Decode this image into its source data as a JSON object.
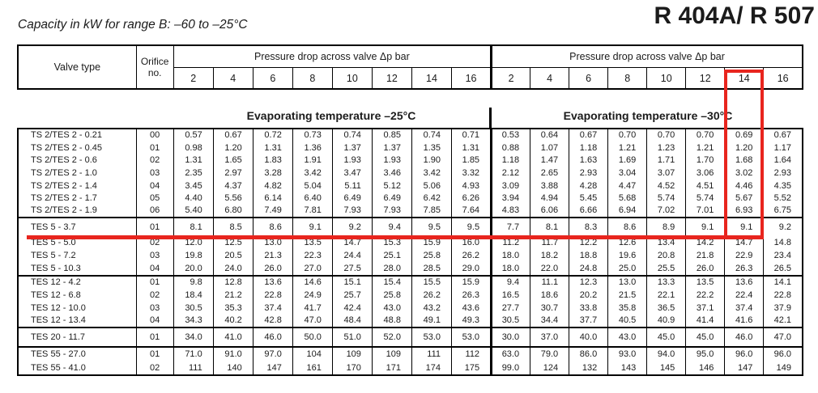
{
  "page": {
    "subtitle": "Capacity in kW for range B: –60 to –25°C",
    "title": "R 404A/ R 507"
  },
  "header": {
    "valve_type": "Valve type",
    "orifice": "Orifice no.",
    "pressure_drop_left": "Pressure drop across valve Δp bar",
    "pressure_drop_right": "Pressure drop across valve Δp bar",
    "pressure_columns": [
      "2",
      "4",
      "6",
      "8",
      "10",
      "12",
      "14",
      "16"
    ]
  },
  "sections": {
    "evap_left": "Evaporating temperature –25°C",
    "evap_right": "Evaporating temperature –30°C"
  },
  "highlight": {
    "color": "#e8251e",
    "marked_column": "14",
    "marked_row": "TES 5 - 3.7"
  },
  "table": {
    "groups": [
      {
        "rows": [
          {
            "valve": "TS 2/TES 2 - 0.21",
            "orifice": "00",
            "minus25": [
              "0.57",
              "0.67",
              "0.72",
              "0.73",
              "0.74",
              "0.85",
              "0.74",
              "0.71"
            ],
            "minus30": [
              "0.53",
              "0.64",
              "0.67",
              "0.70",
              "0.70",
              "0.70",
              "0.69",
              "0.67"
            ]
          },
          {
            "valve": "TS 2/TES 2 - 0.45",
            "orifice": "01",
            "minus25": [
              "0.98",
              "1.20",
              "1.31",
              "1.36",
              "1.37",
              "1.37",
              "1.35",
              "1.31"
            ],
            "minus30": [
              "0.88",
              "1.07",
              "1.18",
              "1.21",
              "1.23",
              "1.21",
              "1.20",
              "1.17"
            ]
          },
          {
            "valve": "TS 2/TES 2 - 0.6",
            "orifice": "02",
            "minus25": [
              "1.31",
              "1.65",
              "1.83",
              "1.91",
              "1.93",
              "1.93",
              "1.90",
              "1.85"
            ],
            "minus30": [
              "1.18",
              "1.47",
              "1.63",
              "1.69",
              "1.71",
              "1.70",
              "1.68",
              "1.64"
            ]
          },
          {
            "valve": "TS 2/TES 2 - 1.0",
            "orifice": "03",
            "minus25": [
              "2.35",
              "2.97",
              "3.28",
              "3.42",
              "3.47",
              "3.46",
              "3.42",
              "3.32"
            ],
            "minus30": [
              "2.12",
              "2.65",
              "2.93",
              "3.04",
              "3.07",
              "3.06",
              "3.02",
              "2.93"
            ]
          },
          {
            "valve": "TS 2/TES 2 - 1.4",
            "orifice": "04",
            "minus25": [
              "3.45",
              "4.37",
              "4.82",
              "5.04",
              "5.11",
              "5.12",
              "5.06",
              "4.93"
            ],
            "minus30": [
              "3.09",
              "3.88",
              "4.28",
              "4.47",
              "4.52",
              "4.51",
              "4.46",
              "4.35"
            ]
          },
          {
            "valve": "TS 2/TES 2 - 1.7",
            "orifice": "05",
            "minus25": [
              "4.40",
              "5.56",
              "6.14",
              "6.40",
              "6.49",
              "6.49",
              "6.42",
              "6.26"
            ],
            "minus30": [
              "3.94",
              "4.94",
              "5.45",
              "5.68",
              "5.74",
              "5.74",
              "5.67",
              "5.52"
            ]
          },
          {
            "valve": "TS 2/TES 2 - 1.9",
            "orifice": "06",
            "minus25": [
              "5.40",
              "6.80",
              "7.49",
              "7.81",
              "7.93",
              "7.93",
              "7.85",
              "7.64"
            ],
            "minus30": [
              "4.83",
              "6.06",
              "6.66",
              "6.94",
              "7.02",
              "7.01",
              "6.93",
              "6.75"
            ]
          }
        ]
      },
      {
        "rows": [
          {
            "valve": "TES 5 - 3.7",
            "orifice": "01",
            "minus25": [
              "8.1",
              "8.5",
              "8.6",
              "9.1",
              "9.2",
              "9.4",
              "9.5",
              "9.5"
            ],
            "minus30": [
              "7.7",
              "8.1",
              "8.3",
              "8.6",
              "8.9",
              "9.1",
              "9.1",
              "9.2"
            ]
          },
          {
            "valve": "TES 5 - 5.0",
            "orifice": "02",
            "minus25": [
              "12.0",
              "12.5",
              "13.0",
              "13.5",
              "14.7",
              "15.3",
              "15.9",
              "16.0"
            ],
            "minus30": [
              "11.2",
              "11.7",
              "12.2",
              "12.6",
              "13.4",
              "14.2",
              "14.7",
              "14.8"
            ]
          },
          {
            "valve": "TES 5 - 7.2",
            "orifice": "03",
            "minus25": [
              "19.8",
              "20.5",
              "21.3",
              "22.3",
              "24.4",
              "25.1",
              "25.8",
              "26.2"
            ],
            "minus30": [
              "18.0",
              "18.2",
              "18.8",
              "19.6",
              "20.8",
              "21.8",
              "22.9",
              "23.4"
            ]
          },
          {
            "valve": "TES 5 - 10.3",
            "orifice": "04",
            "minus25": [
              "20.0",
              "24.0",
              "26.0",
              "27.0",
              "27.5",
              "28.0",
              "28.5",
              "29.0"
            ],
            "minus30": [
              "18.0",
              "22.0",
              "24.8",
              "25.0",
              "25.5",
              "26.0",
              "26.3",
              "26.5"
            ]
          }
        ]
      },
      {
        "rows": [
          {
            "valve": "TES 12 - 4.2",
            "orifice": "01",
            "minus25": [
              "9.8",
              "12.8",
              "13.6",
              "14.6",
              "15.1",
              "15.4",
              "15.5",
              "15.9"
            ],
            "minus30": [
              "9.4",
              "11.1",
              "12.3",
              "13.0",
              "13.3",
              "13.5",
              "13.6",
              "14.1"
            ]
          },
          {
            "valve": "TES 12 - 6.8",
            "orifice": "02",
            "minus25": [
              "18.4",
              "21.2",
              "22.8",
              "24.9",
              "25.7",
              "25.8",
              "26.2",
              "26.3"
            ],
            "minus30": [
              "16.5",
              "18.6",
              "20.2",
              "21.5",
              "22.1",
              "22.2",
              "22.4",
              "22.8"
            ]
          },
          {
            "valve": "TES 12 - 10.0",
            "orifice": "03",
            "minus25": [
              "30.5",
              "35.3",
              "37.4",
              "41.7",
              "42.4",
              "43.0",
              "43.2",
              "43.6"
            ],
            "minus30": [
              "27.7",
              "30.7",
              "33.8",
              "35.8",
              "36.5",
              "37.1",
              "37.4",
              "37.9"
            ]
          },
          {
            "valve": "TES 12 - 13.4",
            "orifice": "04",
            "minus25": [
              "34.3",
              "40.2",
              "42.8",
              "47.0",
              "48.4",
              "48.8",
              "49.1",
              "49.3"
            ],
            "minus30": [
              "30.5",
              "34.4",
              "37.7",
              "40.5",
              "40.9",
              "41.4",
              "41.6",
              "42.1"
            ]
          }
        ]
      },
      {
        "rows": [
          {
            "valve": "TES 20 - 11.7",
            "orifice": "01",
            "minus25": [
              "34.0",
              "41.0",
              "46.0",
              "50.0",
              "51.0",
              "52.0",
              "53.0",
              "53.0"
            ],
            "minus30": [
              "30.0",
              "37.0",
              "40.0",
              "43.0",
              "45.0",
              "45.0",
              "46.0",
              "47.0"
            ]
          }
        ]
      },
      {
        "rows": [
          {
            "valve": "TES 55 - 27.0",
            "orifice": "01",
            "minus25": [
              "71.0",
              "91.0",
              "97.0",
              "104",
              "109",
              "109",
              "111",
              "112"
            ],
            "minus30": [
              "63.0",
              "79.0",
              "86.0",
              "93.0",
              "94.0",
              "95.0",
              "96.0",
              "96.0"
            ]
          },
          {
            "valve": "TES 55 - 41.0",
            "orifice": "02",
            "minus25": [
              "111",
              "140",
              "147",
              "161",
              "170",
              "171",
              "174",
              "175"
            ],
            "minus30": [
              "99.0",
              "124",
              "132",
              "143",
              "145",
              "146",
              "147",
              "149"
            ]
          }
        ]
      }
    ]
  }
}
